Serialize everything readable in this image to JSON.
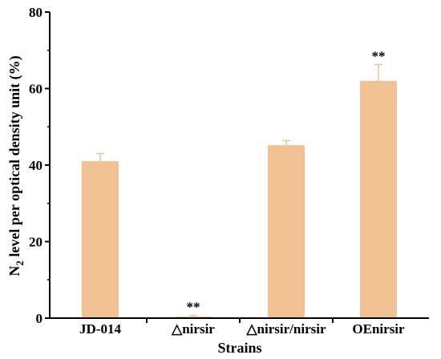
{
  "chart_data": {
    "type": "bar",
    "categories": [
      "JD-014",
      "△nirsir",
      "△nirsir/nirsir",
      "OEnirsir"
    ],
    "values": [
      41,
      0.4,
      45.2,
      62
    ],
    "errors": [
      2,
      0.3,
      1.2,
      4.3
    ],
    "significance": [
      "",
      "**",
      "",
      "**"
    ],
    "xlabel": "Strains",
    "ylabel_main": "N",
    "ylabel_sub": "2",
    "ylabel_rest": " level per optical density unit (%)",
    "ylim": [
      0,
      80
    ],
    "yticks": [
      "0",
      "20",
      "40",
      "60",
      "80"
    ],
    "bar_color": "#f2c193",
    "error_color": "#f2c193",
    "grid": false
  }
}
